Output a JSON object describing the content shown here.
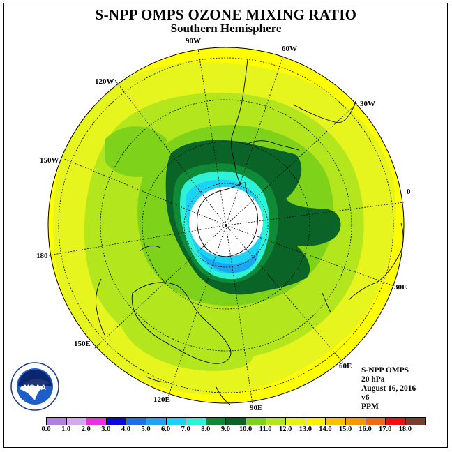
{
  "title": "S-NPP OMPS OZONE MIXING RATIO",
  "subtitle": "Southern Hemisphere",
  "longitude_labels": [
    "90W",
    "60W",
    "30W",
    "0",
    "30E",
    "60E",
    "90E",
    "120E",
    "150E",
    "180",
    "150W",
    "120W"
  ],
  "info": {
    "instrument": "S-NPP OMPS",
    "pressure": "20 hPa",
    "date": "August 16, 2016",
    "version": "v6",
    "units": "PPM"
  },
  "logo_text": "NOAA",
  "colorbar": {
    "ticks": [
      "0.0",
      "1.0",
      "2.0",
      "3.0",
      "4.0",
      "5.0",
      "6.0",
      "7.0",
      "8.0",
      "9.0",
      "10.0",
      "11.0",
      "12.0",
      "13.0",
      "14.0",
      "15.0",
      "16.0",
      "17.0",
      "18.0"
    ],
    "colors": [
      "#b57fe0",
      "#d7a8f0",
      "#ee2ee6",
      "#0a0ad8",
      "#1e6fe8",
      "#1aa6f0",
      "#1cd2f5",
      "#2ef2d8",
      "#0f8a37",
      "#0a6428",
      "#7fd21a",
      "#b4e61e",
      "#e6f01a",
      "#fdf000",
      "#f8c000",
      "#f39a00",
      "#f26a10",
      "#ee1010",
      "#7a3d2a"
    ]
  },
  "colors": {
    "background_yellow": "#e6f51e",
    "bright_yellow": "#ffff00",
    "light_green": "#b4e61e",
    "green": "#7fd21a",
    "dark_green": "#0a6428",
    "mid_green": "#0f8a37",
    "cyan": "#1cd2f5",
    "teal": "#2ef2d8",
    "blue": "#1aa6f0",
    "polar_white": "#ffffff"
  }
}
